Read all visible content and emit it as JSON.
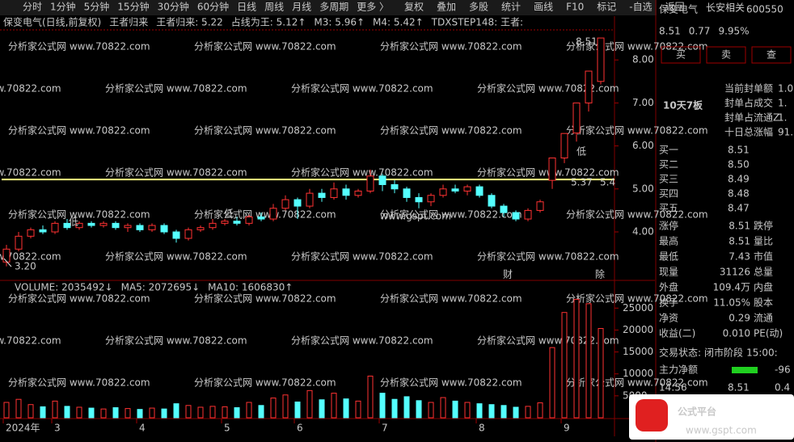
{
  "toolbar": {
    "periods": [
      "分时",
      "1分钟",
      "5分钟",
      "15分钟",
      "30分钟",
      "60分钟",
      "日线",
      "周线",
      "月线",
      "多周期",
      "更多 〉"
    ],
    "tools": [
      "复权",
      "叠加",
      "多股",
      "统计",
      "画线",
      "F10",
      "标记",
      "-自选",
      "返回"
    ]
  },
  "watermark": "分析家公式网 www.70822.com",
  "center_mark": "www.gspt.com",
  "chart_data": [
    {
      "type": "candlestick",
      "title": "保变电气(日线,前复权)",
      "legend": [
        {
          "label": "王者归来",
          "color": "#e0e0e0"
        },
        {
          "label": "王者归来: 5.22",
          "color": "#ffff40"
        },
        {
          "label": "占线为王: 5.12↑",
          "color": "#ff40ff"
        },
        {
          "label": "M3: 5.96↑",
          "color": "#ff4040"
        },
        {
          "label": "M4: 5.42↑",
          "color": "#40ff40"
        },
        {
          "label": "TDXSTEP148: 王者:",
          "color": "#40ffff"
        }
      ],
      "level": 5.22,
      "level_color": "#ffff80",
      "up_color": "#ff3232",
      "down_color": "#54ffff",
      "categories": [
        "2024年",
        null,
        null,
        null,
        "3",
        null,
        null,
        null,
        null,
        null,
        null,
        "4",
        null,
        null,
        null,
        null,
        null,
        null,
        "5",
        null,
        null,
        null,
        null,
        null,
        "6",
        null,
        null,
        null,
        null,
        null,
        null,
        "7",
        null,
        null,
        null,
        null,
        null,
        null,
        null,
        "8",
        null,
        null,
        null,
        null,
        null,
        null,
        "9",
        null,
        null,
        null
      ],
      "candles": [
        [
          3.3,
          3.6,
          3.7,
          3.2
        ],
        [
          3.6,
          3.9,
          4.0,
          3.55
        ],
        [
          3.9,
          4.05,
          4.1,
          3.85
        ],
        [
          4.05,
          4.0,
          4.15,
          3.95
        ],
        [
          4.0,
          4.2,
          4.25,
          3.95
        ],
        [
          4.2,
          4.1,
          4.3,
          4.05
        ],
        [
          4.1,
          4.2,
          4.25,
          4.05
        ],
        [
          4.2,
          4.15,
          4.25,
          4.1
        ],
        [
          4.15,
          4.2,
          4.25,
          4.1
        ],
        [
          4.2,
          4.1,
          4.25,
          4.05
        ],
        [
          4.1,
          4.15,
          4.2,
          4.0
        ],
        [
          4.15,
          4.05,
          4.2,
          4.0
        ],
        [
          4.05,
          4.15,
          4.2,
          4.0
        ],
        [
          4.15,
          4.0,
          4.2,
          3.95
        ],
        [
          4.0,
          3.85,
          4.05,
          3.75
        ],
        [
          3.85,
          4.05,
          4.1,
          3.8
        ],
        [
          4.05,
          4.1,
          4.15,
          4.0
        ],
        [
          4.1,
          4.2,
          4.3,
          4.05
        ],
        [
          4.2,
          4.25,
          4.3,
          4.15
        ],
        [
          4.25,
          4.2,
          4.35,
          4.15
        ],
        [
          4.2,
          4.35,
          4.4,
          4.15
        ],
        [
          4.35,
          4.3,
          4.45,
          4.25
        ],
        [
          4.3,
          4.55,
          4.65,
          4.25
        ],
        [
          4.55,
          4.75,
          4.85,
          4.5
        ],
        [
          4.75,
          4.6,
          4.8,
          4.3
        ],
        [
          4.6,
          4.9,
          5.0,
          4.55
        ],
        [
          4.9,
          4.8,
          5.0,
          4.7
        ],
        [
          4.8,
          5.0,
          5.15,
          4.75
        ],
        [
          5.0,
          4.85,
          5.1,
          4.75
        ],
        [
          4.85,
          4.95,
          5.0,
          4.8
        ],
        [
          4.95,
          5.3,
          5.45,
          4.9
        ],
        [
          5.3,
          5.1,
          5.35,
          4.95
        ],
        [
          5.1,
          5.0,
          5.2,
          4.9
        ],
        [
          5.0,
          4.8,
          5.05,
          4.7
        ],
        [
          4.8,
          4.7,
          4.9,
          4.55
        ],
        [
          4.7,
          4.85,
          4.9,
          4.6
        ],
        [
          4.85,
          5.0,
          5.1,
          4.8
        ],
        [
          5.0,
          4.95,
          5.1,
          4.9
        ],
        [
          4.95,
          5.05,
          5.1,
          4.85
        ],
        [
          5.05,
          4.85,
          5.1,
          4.8
        ],
        [
          4.85,
          4.6,
          4.9,
          4.55
        ],
        [
          4.6,
          4.45,
          4.65,
          4.35
        ],
        [
          4.45,
          4.3,
          4.5,
          4.25
        ],
        [
          4.3,
          4.5,
          4.55,
          4.25
        ],
        [
          4.5,
          4.7,
          4.75,
          4.45
        ],
        [
          5.2,
          5.72,
          5.72,
          5.0
        ],
        [
          5.72,
          6.29,
          6.29,
          5.6
        ],
        [
          6.3,
          7.0,
          7.0,
          6.1
        ],
        [
          7.0,
          7.74,
          7.74,
          6.8
        ],
        [
          7.5,
          8.51,
          8.51,
          7.43
        ]
      ],
      "ylim": [
        2.91,
        8.68
      ],
      "yticks": [
        {
          "value": 4,
          "label": "4.00"
        },
        {
          "value": 5,
          "label": "5.00"
        },
        {
          "value": 6,
          "label": "6.00"
        },
        {
          "value": 7,
          "label": "7.00"
        },
        {
          "value": 8,
          "label": "8.00"
        }
      ],
      "annotations": [
        "8.51",
        "3.20",
        "5.37",
        "5.4"
      ],
      "markers": [
        "低",
        "低",
        "低",
        "财",
        "除"
      ]
    },
    {
      "type": "bar",
      "title": "VOLUME: 2035492↓",
      "legend": [
        {
          "label": "MA5: 2072695↓",
          "color": "#ffff40"
        },
        {
          "label": "MA10: 1606830↑",
          "color": "#ff40ff"
        }
      ],
      "values": [
        3500,
        4200,
        3000,
        2500,
        3800,
        2600,
        2400,
        2200,
        2000,
        2300,
        2100,
        1900,
        2200,
        2000,
        3200,
        2800,
        2400,
        2600,
        2500,
        2300,
        3500,
        2800,
        4500,
        5200,
        3600,
        6200,
        4100,
        5600,
        4300,
        3800,
        9500,
        5600,
        4200,
        4800,
        3900,
        3500,
        4600,
        3800,
        3500,
        3200,
        3000,
        2800,
        2400,
        2600,
        3400,
        16000,
        24000,
        27000,
        26000,
        20354
      ],
      "ylim": [
        0,
        28000
      ],
      "yticks": [
        5000,
        10000,
        15000,
        20000,
        25000
      ]
    }
  ],
  "quote": {
    "name": "保变电气",
    "tag": "长安相关",
    "code": "600550",
    "price": "8.51",
    "change": "0.77",
    "pct": "9.95%",
    "buttons": [
      "买",
      "卖",
      "查"
    ],
    "streak": "10天7板",
    "seal": [
      [
        "当前封单额",
        "1.0"
      ],
      [
        "封单占成交",
        "1."
      ],
      [
        "封单占流通Z",
        "1."
      ],
      [
        "十日总涨幅",
        "91."
      ]
    ],
    "book": [
      [
        "买一",
        "8.51"
      ],
      [
        "买二",
        "8.50"
      ],
      [
        "买三",
        "8.49"
      ],
      [
        "买四",
        "8.48"
      ],
      [
        "买五",
        "8.47"
      ]
    ],
    "stats": [
      [
        "涨停",
        "8.51",
        "跌停"
      ],
      [
        "最高",
        "8.51",
        "量比"
      ],
      [
        "最低",
        "7.43",
        "市值"
      ],
      [
        "现量",
        "31126",
        "总量"
      ],
      [
        "外盘",
        "109.4万",
        "内盘"
      ],
      [
        "换手",
        "11.05%",
        "股本"
      ],
      [
        "净资",
        "0.29",
        "流通"
      ],
      [
        "收益(二)",
        "0.010",
        "PE(动)"
      ]
    ],
    "status": [
      "交易状态:",
      "闭市阶段",
      "15:00:"
    ],
    "main_net": [
      "主力净额",
      "-96"
    ],
    "tick": [
      "14:56",
      "8.51",
      "0.4"
    ]
  },
  "logo": {
    "name": "公式平台",
    "url": "www.gspt.com"
  }
}
